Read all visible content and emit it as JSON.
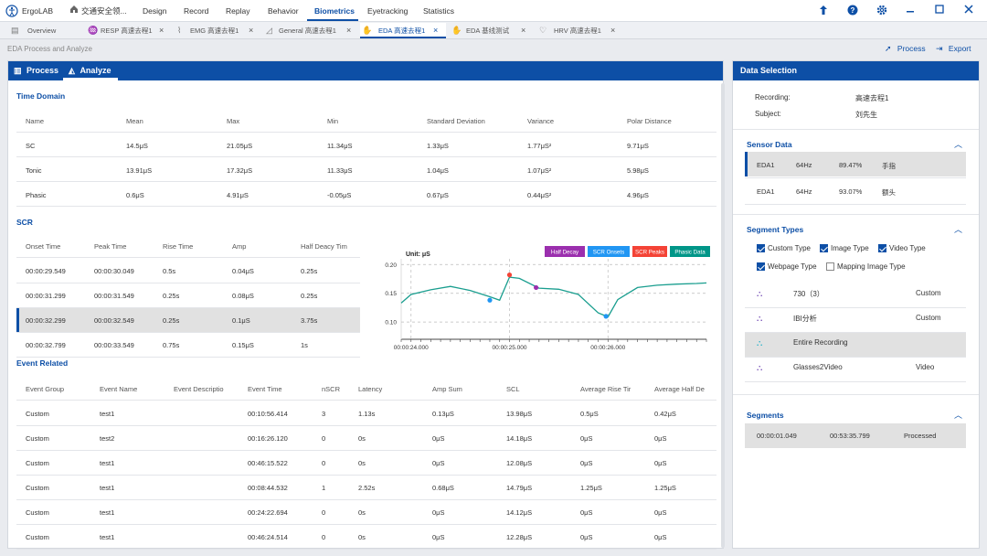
{
  "app": {
    "name": "ErgoLAB"
  },
  "menu": {
    "items": [
      "交通安全领...",
      "Design",
      "Record",
      "Replay",
      "Behavior",
      "Biometrics",
      "Eyetracking",
      "Statistics"
    ],
    "active": "Biometrics"
  },
  "tabs": [
    {
      "label": "Overview",
      "icon": "document-icon"
    },
    {
      "label": "RESP 高速去程1",
      "icon": "lungs-icon"
    },
    {
      "label": "EMG 高速去程1",
      "icon": "muscle-icon"
    },
    {
      "label": "General 高速去程1",
      "icon": "chart-icon"
    },
    {
      "label": "EDA 高速去程1",
      "icon": "hand-icon",
      "active": true
    },
    {
      "label": "EDA 基线测试",
      "icon": "hand-icon"
    },
    {
      "label": "HRV 高速去程1",
      "icon": "heart-icon"
    }
  ],
  "breadcrumb": "EDA Process and Analyze",
  "actions": {
    "process": "Process",
    "export": "Export"
  },
  "left_tabs": {
    "process": "Process",
    "analyze": "Analyze"
  },
  "time_domain": {
    "title": "Time Domain",
    "headers": [
      "Name",
      "Mean",
      "Max",
      "Min",
      "Standard Deviation",
      "Variance",
      "Polar Distance"
    ],
    "rows": [
      [
        "SC",
        "14.5μS",
        "21.05μS",
        "11.34μS",
        "1.33μS",
        "1.77μS²",
        "9.71μS"
      ],
      [
        "Tonic",
        "13.91μS",
        "17.32μS",
        "11.33μS",
        "1.04μS",
        "1.07μS²",
        "5.98μS"
      ],
      [
        "Phasic",
        "0.6μS",
        "4.91μS",
        "-0.05μS",
        "0.67μS",
        "0.44μS²",
        "4.96μS"
      ]
    ]
  },
  "scr": {
    "title": "SCR",
    "headers": [
      "Onset Time",
      "Peak Time",
      "Rise Time",
      "Amp",
      "Half Deacy Tim"
    ],
    "rows": [
      [
        "00:00:29.549",
        "00:00:30.049",
        "0.5s",
        "0.04μS",
        "0.25s"
      ],
      [
        "00:00:31.299",
        "00:00:31.549",
        "0.25s",
        "0.08μS",
        "0.25s"
      ],
      [
        "00:00:32.299",
        "00:00:32.549",
        "0.25s",
        "0.1μS",
        "3.75s"
      ],
      [
        "00:00:32.799",
        "00:00:33.549",
        "0.75s",
        "0.15μS",
        "1s"
      ]
    ],
    "selected_row": 2
  },
  "chart_data": {
    "type": "line",
    "unit_label": "Unit: μS",
    "legend": [
      {
        "name": "Half Decay",
        "color": "#9b2fae"
      },
      {
        "name": "SCR Onsets",
        "color": "#2196f3"
      },
      {
        "name": "SCR Peaks",
        "color": "#f44336"
      },
      {
        "name": "Phasic Data",
        "color": "#009688"
      }
    ],
    "ylim": [
      0.07,
      0.21
    ],
    "yticks": [
      0.1,
      0.15,
      0.2
    ],
    "ytick_labels": [
      "0.10",
      "0.15",
      "0.20"
    ],
    "xlim": [
      23.9,
      27.0
    ],
    "xticks": [
      24.0,
      25.0,
      26.0
    ],
    "xtick_labels": [
      "00:00:24.000",
      "00:00:25.000",
      "00:00:26.000"
    ],
    "series": [
      {
        "color": "#1a9e8f",
        "x": [
          23.9,
          24.0,
          24.2,
          24.4,
          24.6,
          24.8,
          24.9,
          25.0,
          25.1,
          25.3,
          25.5,
          25.7,
          25.9,
          26.0,
          26.1,
          26.3,
          26.5,
          26.7,
          26.9,
          27.0
        ],
        "y": [
          0.133,
          0.148,
          0.156,
          0.162,
          0.155,
          0.144,
          0.138,
          0.178,
          0.176,
          0.159,
          0.157,
          0.148,
          0.116,
          0.109,
          0.139,
          0.16,
          0.164,
          0.166,
          0.167,
          0.168
        ]
      }
    ],
    "markers": [
      {
        "type": "SCR Onsets",
        "x": 24.8,
        "y": 0.138
      },
      {
        "type": "SCR Peaks",
        "x": 25.0,
        "y": 0.182
      },
      {
        "type": "Half Decay",
        "x": 25.27,
        "y": 0.16
      },
      {
        "type": "SCR Onsets",
        "x": 25.98,
        "y": 0.11
      }
    ]
  },
  "event_related": {
    "title": "Event Related",
    "headers": [
      "Event Group",
      "Event Name",
      "Event Descriptio",
      "Event Time",
      "nSCR",
      "Latency",
      "Amp Sum",
      "SCL",
      "Average Rise Tir",
      "Average Half De"
    ],
    "rows": [
      [
        "Custom",
        "test1",
        "",
        "00:10:56.414",
        "3",
        "1.13s",
        "0.13μS",
        "13.98μS",
        "0.5μS",
        "0.42μS"
      ],
      [
        "Custom",
        "test2",
        "",
        "00:16:26.120",
        "0",
        "0s",
        "0μS",
        "14.18μS",
        "0μS",
        "0μS"
      ],
      [
        "Custom",
        "test1",
        "",
        "00:46:15.522",
        "0",
        "0s",
        "0μS",
        "12.08μS",
        "0μS",
        "0μS"
      ],
      [
        "Custom",
        "test1",
        "",
        "00:08:44.532",
        "1",
        "2.52s",
        "0.68μS",
        "14.79μS",
        "1.25μS",
        "1.25μS"
      ],
      [
        "Custom",
        "test1",
        "",
        "00:24:22.694",
        "0",
        "0s",
        "0μS",
        "14.12μS",
        "0μS",
        "0μS"
      ],
      [
        "Custom",
        "test1",
        "",
        "00:46:24.514",
        "0",
        "0s",
        "0μS",
        "12.28μS",
        "0μS",
        "0μS"
      ]
    ]
  },
  "data_selection": {
    "title": "Data Selection",
    "recording_label": "Recording:",
    "recording_value": "高速去程1",
    "subject_label": "Subject:",
    "subject_value": "刘先生"
  },
  "sensor_data": {
    "title": "Sensor Data",
    "rows": [
      [
        "EDA1",
        "64Hz",
        "89.47%",
        "手指"
      ],
      [
        "EDA1",
        "64Hz",
        "93.07%",
        "额头"
      ]
    ],
    "selected_row": 0
  },
  "segment_types": {
    "title": "Segment Types",
    "checks": [
      {
        "label": "Custom Type",
        "checked": true
      },
      {
        "label": "Image Type",
        "checked": true
      },
      {
        "label": "Video Type",
        "checked": true
      },
      {
        "label": "Webpage Type",
        "checked": true
      },
      {
        "label": "Mapping Image Type",
        "checked": false
      }
    ],
    "items": [
      {
        "name": "730（3）",
        "type": "Custom"
      },
      {
        "name": "IBI分析",
        "type": "Custom"
      },
      {
        "name": "Entire Recording",
        "type": ""
      },
      {
        "name": "Glasses2Video",
        "type": "Video"
      }
    ],
    "selected_item": 2
  },
  "segments": {
    "title": "Segments",
    "rows": [
      [
        "00:00:01.049",
        "00:53:35.799",
        "Processed"
      ]
    ]
  }
}
